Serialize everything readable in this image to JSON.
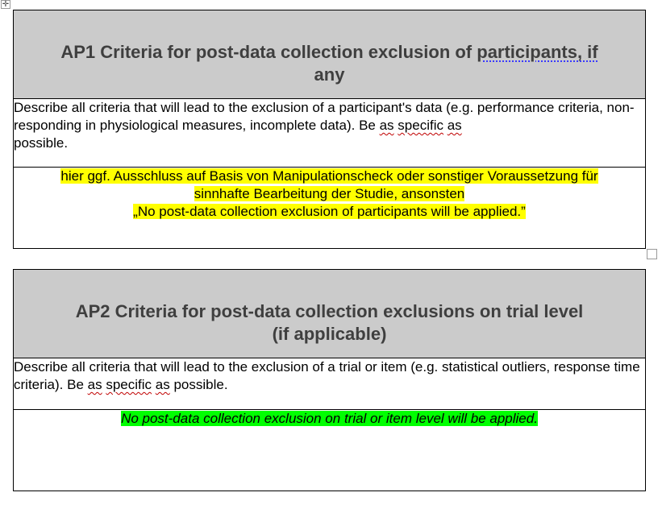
{
  "ap1": {
    "title_main": "AP1 Criteria for post-data collection exclusion of ",
    "title_marked": "participants, if",
    "title_end": "any",
    "desc_before": "Describe all criteria that will lead to the exclusion of a participant's data (e.g. performance criteria, non-responding in physiological measures, incomplete data). Be ",
    "desc_as1": "as",
    "desc_specific": "specific",
    "desc_as2": "as",
    "desc_after": "possible.",
    "answer_line1": "hier ggf. Ausschluss auf Basis von Manipulationscheck oder sonstiger Voraussetzung für",
    "answer_line2": "sinnhafte Bearbeitung der Studie, ansonsten",
    "answer_line3": "„No post-data collection exclusion of participants will be applied.”"
  },
  "ap2": {
    "title_line1": "AP2 Criteria for post-data collection exclusions on trial level",
    "title_line2": "(if applicable)",
    "desc_before": "Describe all criteria that will lead to the exclusion of a trial or item (e.g. statistical outliers, response time criteria). Be ",
    "desc_as1": "as",
    "desc_specific": "specific",
    "desc_as2": "as",
    "desc_after": "possible.",
    "answer": "No post-data collection exclusion on trial or item level will be applied."
  },
  "colors": {
    "header_bg": "#cbcbcb",
    "highlight_yellow": "#ffff00",
    "highlight_green": "#00ff00"
  },
  "icons": [
    "move-cross-icon",
    "resize-handle-icon"
  ]
}
